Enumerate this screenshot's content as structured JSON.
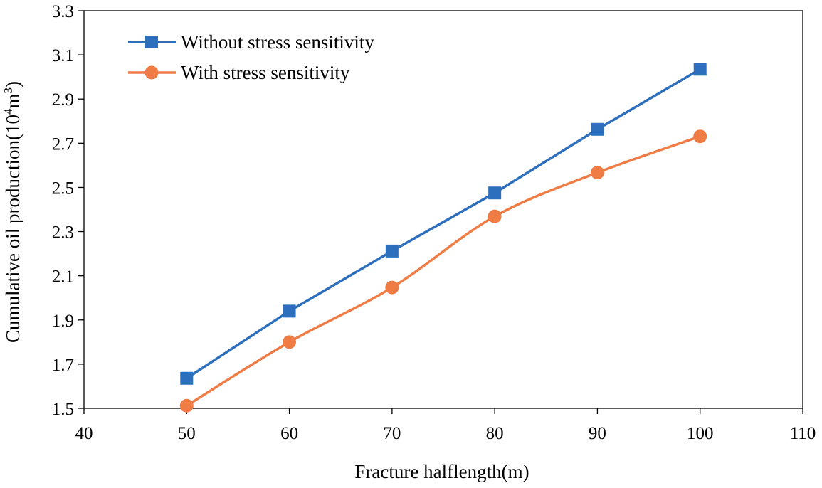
{
  "chart_data": {
    "type": "line",
    "title": "",
    "xlabel": "Fracture halflength(m)",
    "ylabel": {
      "prefix": "Cumulative oil production(10",
      "exp1": "4",
      "mid": "m",
      "exp2": "3",
      "suffix": ")"
    },
    "xlim": [
      40,
      110
    ],
    "ylim": [
      1.5,
      3.3
    ],
    "xticks": [
      "40",
      "50",
      "60",
      "70",
      "80",
      "90",
      "100",
      "110"
    ],
    "yticks": [
      "1.5",
      "1.7",
      "1.9",
      "2.1",
      "2.3",
      "2.5",
      "2.7",
      "2.9",
      "3.1",
      "3.3"
    ],
    "x": [
      50,
      60,
      70,
      80,
      90,
      100
    ],
    "series": [
      {
        "name": "Without stress sensitivity",
        "marker": "square",
        "color": "#2e6fbd",
        "values": [
          1.636,
          1.94,
          2.212,
          2.475,
          2.763,
          3.035
        ]
      },
      {
        "name": "With stress sensitivity",
        "marker": "circle",
        "color": "#f07c45",
        "values": [
          1.512,
          1.8,
          2.047,
          2.369,
          2.567,
          2.731
        ]
      }
    ],
    "legend_position": "top-left",
    "grid": false
  }
}
